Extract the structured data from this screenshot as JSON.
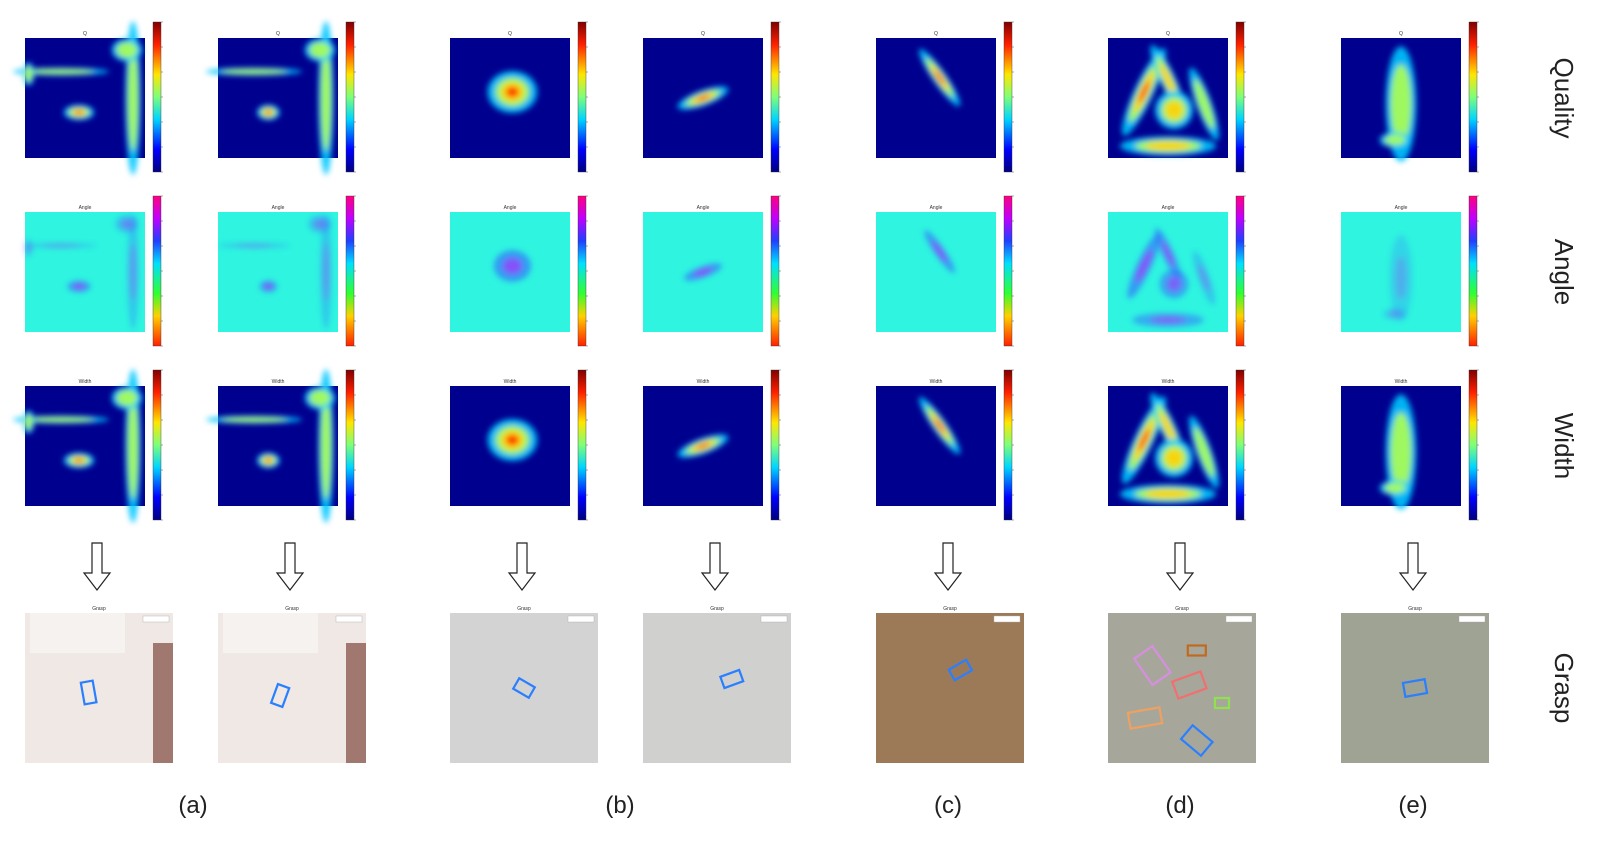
{
  "row_labels": [
    "Quality",
    "Angle",
    "Width",
    "Grasp"
  ],
  "panel_titles": [
    "Q",
    "Angle",
    "Width",
    "Grasp"
  ],
  "column_labels": [
    "(a)",
    "(b)",
    "(c)",
    "(d)",
    "(e)"
  ]
}
